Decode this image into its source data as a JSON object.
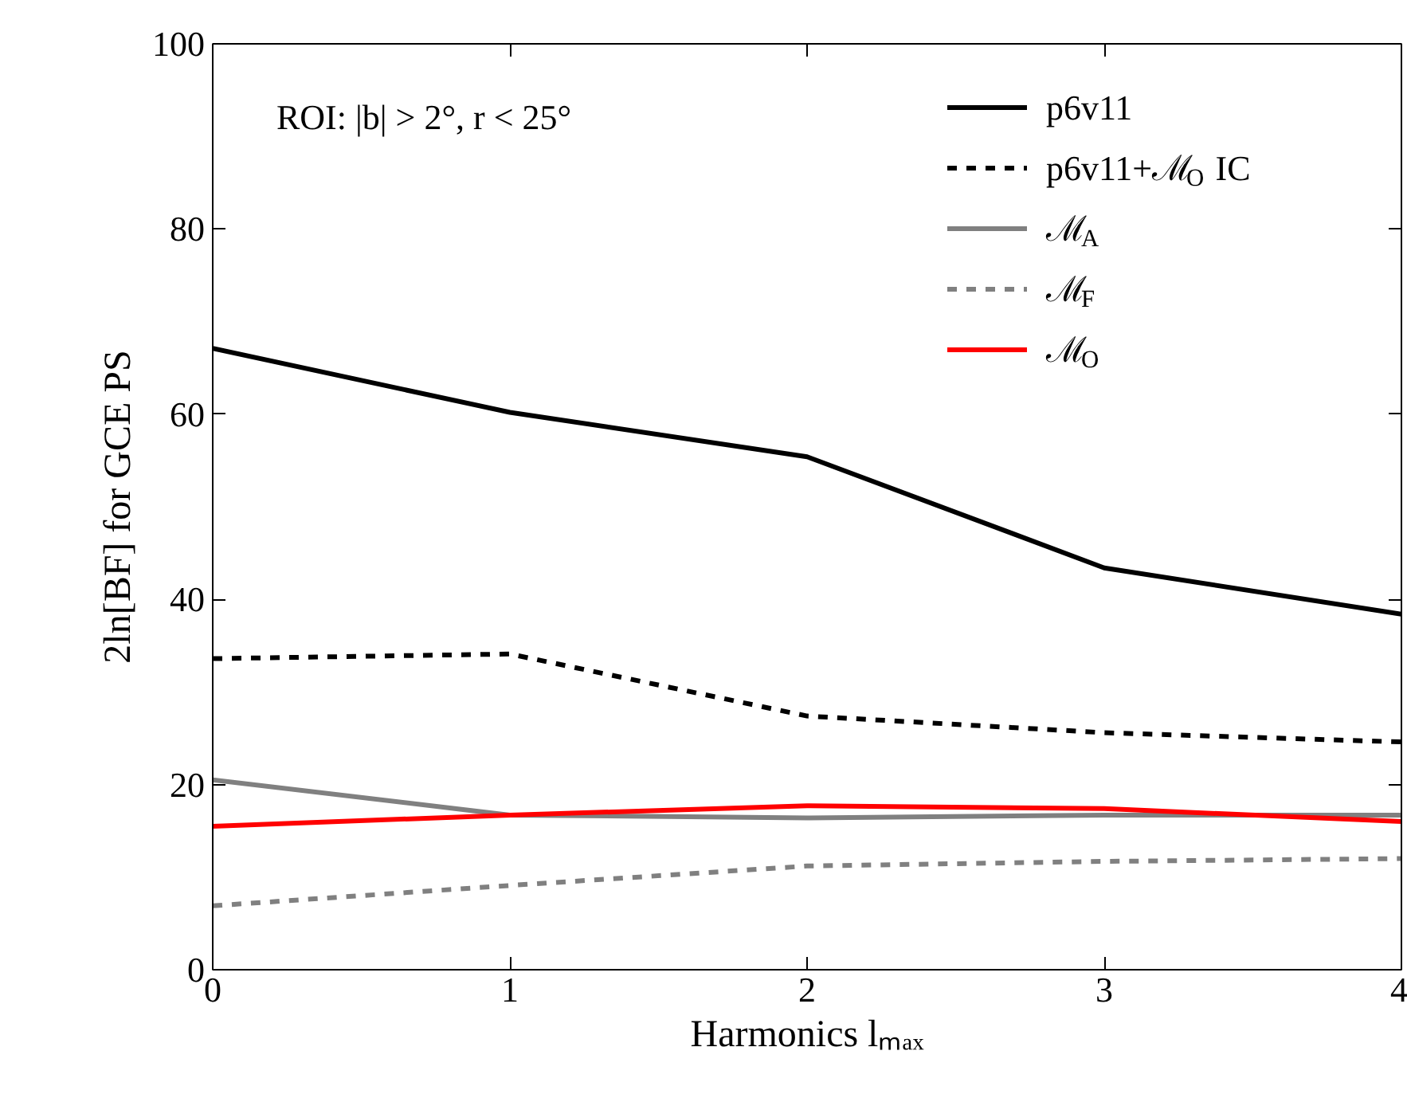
{
  "chart_data": {
    "type": "line",
    "xlabel": "Harmonics lₘₐₓ",
    "ylabel": "2ln[BF] for GCE PS",
    "annotations": [
      "ROI: |b| > 2°, r < 25°"
    ],
    "x": [
      0,
      1,
      2,
      3,
      4
    ],
    "xlim": [
      0,
      4
    ],
    "ylim": [
      0,
      100
    ],
    "xticks": [
      0,
      1,
      2,
      3,
      4
    ],
    "yticks": [
      0,
      20,
      40,
      60,
      80,
      100
    ],
    "grid": false,
    "legend": "top right",
    "series": [
      {
        "name": "p6v11",
        "color": "#000000",
        "line_style": "solid",
        "values": [
          67.1,
          60.2,
          55.4,
          43.4,
          38.4
        ]
      },
      {
        "name": "p6v11+ℳ$_{O}$ IC",
        "color": "#000000",
        "line_style": "dashed",
        "values": [
          33.6,
          34.1,
          27.4,
          25.6,
          24.6
        ]
      },
      {
        "name": "ℳ$_{A}$",
        "color": "#808080",
        "line_style": "solid",
        "values": [
          20.5,
          16.7,
          16.4,
          16.7,
          16.7
        ]
      },
      {
        "name": "ℳ$_{F}$",
        "color": "#808080",
        "line_style": "dashed",
        "values": [
          6.9,
          9.1,
          11.2,
          11.7,
          12.0
        ]
      },
      {
        "name": "ℳ$_{O}$",
        "color": "#ff0000",
        "line_style": "solid",
        "values": [
          15.5,
          16.7,
          17.7,
          17.4,
          16.0
        ]
      }
    ]
  }
}
